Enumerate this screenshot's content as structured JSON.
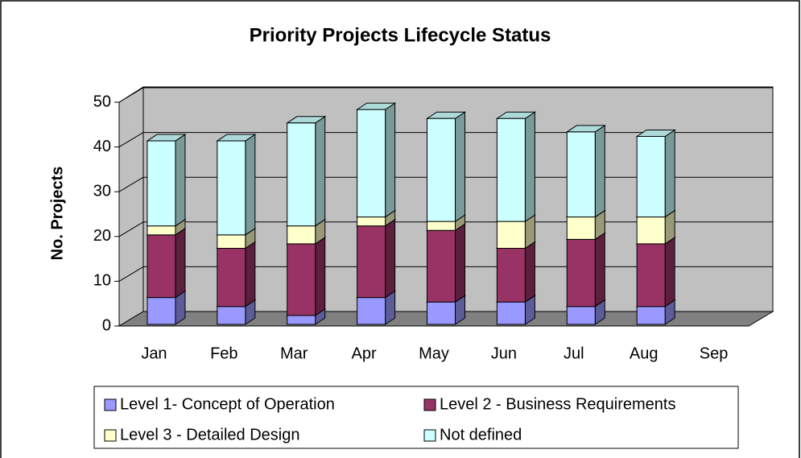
{
  "chart_data": {
    "type": "bar",
    "stacked": true,
    "title": "Priority Projects Lifecycle Status",
    "y_label": "No. Projects",
    "categories": [
      "Jan",
      "Feb",
      "Mar",
      "Apr",
      "May",
      "Jun",
      "Jul",
      "Aug",
      "Sep"
    ],
    "series": [
      {
        "name": "Level 1- Concept of Operation",
        "color": "#9999ff",
        "values": [
          6,
          4,
          2,
          6,
          5,
          5,
          4,
          4,
          null
        ]
      },
      {
        "name": "Level 2 - Business Requirements",
        "color": "#993366",
        "values": [
          14,
          13,
          16,
          16,
          16,
          12,
          15,
          14,
          null
        ]
      },
      {
        "name": "Level 3 - Detailed Design",
        "color": "#ffffcc",
        "values": [
          2,
          3,
          4,
          2,
          2,
          6,
          5,
          6,
          null
        ]
      },
      {
        "name": "Not defined",
        "color": "#ccffff",
        "values": [
          19,
          21,
          23,
          24,
          23,
          23,
          19,
          18,
          null
        ]
      }
    ],
    "ylim": [
      0,
      50
    ],
    "yticks": [
      0,
      10,
      20,
      30,
      40,
      50
    ],
    "grid": true,
    "legend": "bottom"
  }
}
